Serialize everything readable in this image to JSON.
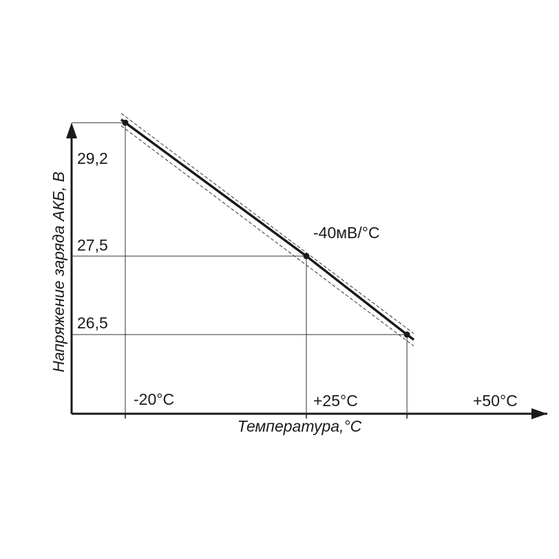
{
  "chart_data": {
    "type": "line",
    "title": "",
    "xlabel": "Температура,°C",
    "ylabel": "Напряжение заряда АКБ, В",
    "x_tick_labels": [
      "-20°C",
      "+25°C",
      "+50°C"
    ],
    "y_tick_labels": [
      "29,2",
      "27,5",
      "26,5"
    ],
    "series": [
      {
        "points": [
          {
            "x": -20,
            "y": 29.2
          },
          {
            "x": 25,
            "y": 27.5
          },
          {
            "x": 50,
            "y": 26.5
          }
        ]
      }
    ],
    "tolerance_band": "dashed",
    "annotation": "-40мВ/°C",
    "colors": {
      "line": "#1a1a1a",
      "grid": "#333333"
    }
  }
}
